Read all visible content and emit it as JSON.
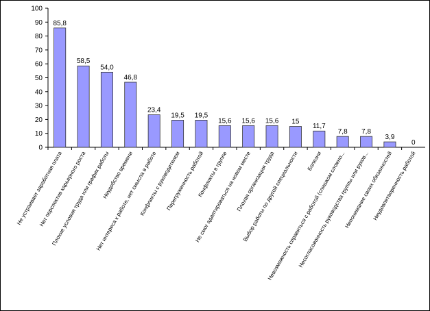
{
  "chart_data": {
    "type": "bar",
    "categories": [
      "Не устраивает заработная плата",
      "Нет перспектив карьерного роста",
      "Плохие условия труда или график работы",
      "Неудобство времени",
      "Нет интереса к работе, нет смысла в работе",
      "Конфликты с руководителем",
      "Перегруженность работой",
      "Конфликты в группе",
      "Не смог адаптироваться на новом месте",
      "Плохая организация труда",
      "Выбор работы по другой специальности",
      "Болезни",
      "Невозможность справиться с работой (слишком сложно...",
      "Несогласованность руководства группы или руков...",
      "Непонимание своих обязанностей",
      "Неудовлетворенность работой"
    ],
    "values": [
      85.8,
      58.5,
      54.0,
      46.8,
      23.4,
      19.5,
      19.5,
      15.6,
      15.6,
      15.6,
      15,
      11.7,
      7.8,
      7.8,
      3.9,
      0
    ],
    "value_labels": [
      "85,8",
      "58,5",
      "54,0",
      "46,8",
      "23,4",
      "19,5",
      "19,5",
      "15,6",
      "15,6",
      "15,6",
      "15",
      "11,7",
      "7,8",
      "7,8",
      "3,9",
      "0"
    ],
    "color": "#9999ff",
    "ylim": [
      0,
      100
    ],
    "yticks": [
      0,
      10,
      20,
      30,
      40,
      50,
      60,
      70,
      80,
      90,
      100
    ],
    "grid": false
  }
}
